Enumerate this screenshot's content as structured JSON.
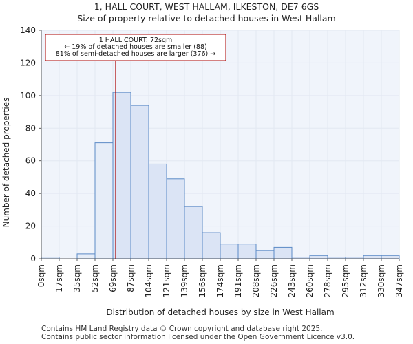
{
  "chart_data": {
    "type": "bar",
    "title": "1, HALL COURT, WEST HALLAM, ILKESTON, DE7 6GS",
    "subtitle": "Size of property relative to detached houses in West Hallam",
    "xlabel": "Distribution of detached houses by size in West Hallam",
    "ylabel": "Number of detached properties",
    "ylim": [
      0,
      140
    ],
    "yticks": [
      0,
      20,
      40,
      60,
      80,
      100,
      120,
      140
    ],
    "xtick_labels": [
      "0sqm",
      "17sqm",
      "35sqm",
      "52sqm",
      "69sqm",
      "87sqm",
      "104sqm",
      "121sqm",
      "139sqm",
      "156sqm",
      "174sqm",
      "191sqm",
      "208sqm",
      "226sqm",
      "243sqm",
      "260sqm",
      "278sqm",
      "295sqm",
      "312sqm",
      "330sqm",
      "347sqm"
    ],
    "bin_edges": [
      0,
      17.35,
      34.7,
      52.05,
      69.4,
      86.75,
      104.1,
      121.45,
      138.8,
      156.15,
      173.5,
      190.85,
      208.2,
      225.55,
      242.9,
      260.25,
      277.6,
      294.95,
      312.3,
      329.65,
      347
    ],
    "values": [
      1,
      0,
      3,
      71,
      102,
      94,
      58,
      49,
      32,
      16,
      9,
      9,
      5,
      7,
      1,
      2,
      1,
      1,
      2,
      2
    ],
    "highlight_bins": [
      0,
      1,
      2,
      3
    ],
    "property_size": 72,
    "annotation": {
      "line1": "1 HALL COURT: 72sqm",
      "line2": "← 19% of detached houses are smaller (88)",
      "line3": "81% of semi-detached houses are larger (376) →"
    },
    "grid": true,
    "colors": {
      "bar_fill": "#dbe4f5",
      "bar_fill_highlight": "#e6edf8",
      "bar_edge": "#5b8ac6",
      "marker_line": "#aa0000",
      "grid": "#e2e8f2",
      "plot_bg": "#f0f4fb"
    }
  },
  "footer": {
    "line1": "Contains HM Land Registry data © Crown copyright and database right 2025.",
    "line2": "Contains public sector information licensed under the Open Government Licence v3.0."
  }
}
